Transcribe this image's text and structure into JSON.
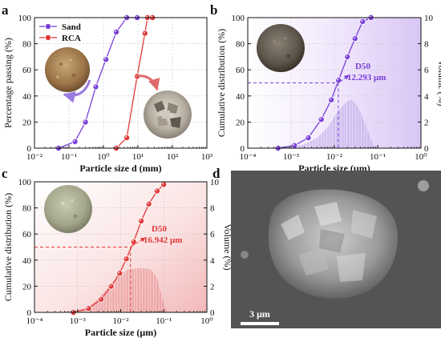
{
  "colors": {
    "sand": "#7a3fd9",
    "rca": "#e0393a",
    "panel_b_accent": "#7a3fd9",
    "panel_c_accent": "#e0393a",
    "panel_b_bg": "#efe6fb",
    "panel_c_bg": "#fbe7e7",
    "sem_bg": "#555555"
  },
  "chart_data": [
    {
      "id": "a",
      "type": "line",
      "panel_label": "a",
      "xlabel": "Particle size d (mm)",
      "ylabel": "Percentage passing (%)",
      "xscale": "log",
      "xlim": [
        0.01,
        1000
      ],
      "ylim": [
        0,
        100
      ],
      "xticks": [
        0.01,
        0.1,
        1,
        10,
        100,
        1000
      ],
      "xtick_labels": [
        "10⁻²",
        "10⁻¹",
        "10⁰",
        "10¹",
        "10²",
        "10³"
      ],
      "yticks": [
        0,
        20,
        40,
        60,
        80,
        100
      ],
      "ytick_labels": [
        "0",
        "20",
        "40",
        "60",
        "80",
        "100"
      ],
      "legend": "top-left",
      "series": [
        {
          "name": "Sand",
          "color": "#7a3fd9",
          "x": [
            0.05,
            0.15,
            0.3,
            0.6,
            1.18,
            2.36,
            4.75,
            9.5
          ],
          "y": [
            0,
            5,
            20,
            47,
            68,
            89,
            100,
            100
          ]
        },
        {
          "name": "RCA",
          "color": "#e0393a",
          "x": [
            2.36,
            4.75,
            9.5,
            16,
            19,
            26.5
          ],
          "y": [
            0,
            8,
            55,
            88,
            100,
            100
          ]
        }
      ]
    },
    {
      "id": "b",
      "type": "line",
      "panel_label": "b",
      "xlabel": "Particle size (μm)",
      "ylabel": "Cumulative distribution (%)",
      "y2label": "Volume (%)",
      "xscale": "log",
      "xlim": [
        0.0001,
        1
      ],
      "ylim": [
        0,
        100
      ],
      "y2lim": [
        0,
        10
      ],
      "xticks": [
        0.0001,
        0.001,
        0.01,
        0.1,
        1
      ],
      "xtick_labels": [
        "10⁻⁴",
        "10⁻³",
        "10⁻²",
        "10⁻¹",
        "10⁰"
      ],
      "yticks": [
        0,
        20,
        40,
        60,
        80,
        100
      ],
      "ytick_labels": [
        "0",
        "20",
        "40",
        "60",
        "80",
        "100"
      ],
      "y2ticks": [
        0,
        2,
        4,
        6,
        8,
        10
      ],
      "y2tick_labels": [
        "0",
        "2",
        "4",
        "6",
        "8",
        "10"
      ],
      "annotation": {
        "label": "D50",
        "value": "12.293 μm",
        "x": 0.0123,
        "y": 50
      },
      "series": [
        {
          "name": "Cumulative",
          "color": "#7a3fd9",
          "x": [
            0.0005,
            0.0012,
            0.0025,
            0.005,
            0.0085,
            0.0125,
            0.02,
            0.03,
            0.045,
            0.07
          ],
          "y": [
            0,
            2,
            8,
            22,
            37,
            52,
            70,
            84,
            97,
            100
          ]
        },
        {
          "name": "Volume",
          "type": "area",
          "axis": "y2",
          "color": "#b9a2e8",
          "x": [
            0.0005,
            0.001,
            0.002,
            0.004,
            0.007,
            0.01,
            0.015,
            0.02,
            0.025,
            0.03,
            0.04,
            0.055,
            0.075,
            0.09
          ],
          "y": [
            0,
            0.1,
            0.3,
            0.8,
            1.6,
            2.4,
            3.2,
            3.6,
            3.7,
            3.5,
            2.8,
            1.6,
            0.5,
            0
          ]
        }
      ]
    },
    {
      "id": "c",
      "type": "line",
      "panel_label": "c",
      "xlabel": "Particle size (μm)",
      "ylabel": "Cumulative distribution (%)",
      "y2label": "Volume (%)",
      "xscale": "log",
      "xlim": [
        0.0001,
        1
      ],
      "ylim": [
        0,
        100
      ],
      "y2lim": [
        0,
        10
      ],
      "xticks": [
        0.0001,
        0.001,
        0.01,
        0.1,
        1
      ],
      "xtick_labels": [
        "10⁻⁴",
        "10⁻³",
        "10⁻²",
        "10⁻¹",
        "10⁰"
      ],
      "yticks": [
        0,
        20,
        40,
        60,
        80,
        100
      ],
      "ytick_labels": [
        "0",
        "20",
        "40",
        "60",
        "80",
        "100"
      ],
      "y2ticks": [
        0,
        2,
        4,
        6,
        8,
        10
      ],
      "y2tick_labels": [
        "0",
        "2",
        "4",
        "6",
        "8",
        "10"
      ],
      "annotation": {
        "label": "D50",
        "value": "16.942 μm",
        "x": 0.0169,
        "y": 50
      },
      "series": [
        {
          "name": "Cumulative",
          "color": "#e0393a",
          "x": [
            0.0008,
            0.0018,
            0.0035,
            0.006,
            0.0095,
            0.0135,
            0.02,
            0.03,
            0.045,
            0.07,
            0.1
          ],
          "y": [
            0,
            3,
            10,
            20,
            30,
            41,
            54,
            70,
            83,
            93,
            98
          ]
        },
        {
          "name": "Volume",
          "type": "area",
          "axis": "y2",
          "color": "#e88a8a",
          "x": [
            0.0008,
            0.0015,
            0.0025,
            0.004,
            0.0065,
            0.01,
            0.015,
            0.03,
            0.05,
            0.07,
            0.09,
            0.12
          ],
          "y": [
            0,
            0.3,
            0.8,
            1.5,
            2.3,
            2.9,
            3.3,
            3.4,
            3.3,
            2.6,
            1.2,
            0
          ]
        }
      ]
    }
  ],
  "panel_d": {
    "panel_label": "d",
    "scale_bar_label": "3 μm"
  }
}
